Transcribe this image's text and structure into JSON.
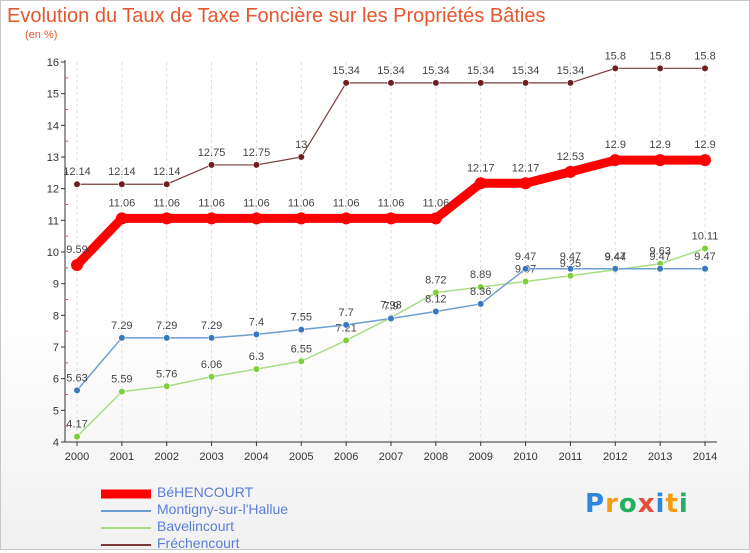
{
  "title": "Evolution du Taux de Taxe Foncière sur les Propriétés Bâties",
  "unit": "(en %)",
  "brand": "Proxiti",
  "colors": {
    "title": "#e4572e",
    "grid": "#dddddd"
  },
  "chart_data": {
    "type": "line",
    "x": [
      2000,
      2001,
      2002,
      2003,
      2004,
      2005,
      2006,
      2007,
      2008,
      2009,
      2010,
      2011,
      2012,
      2013,
      2014
    ],
    "ylim": [
      4,
      16
    ],
    "yticks": [
      4,
      5,
      6,
      7,
      8,
      9,
      10,
      11,
      12,
      13,
      14,
      15,
      16
    ],
    "grid": true,
    "legend_position": "bottom-left",
    "series": [
      {
        "name": "Fréchencourt",
        "color": "#7a3a3a",
        "marker": "#6e2020",
        "width": 1.2,
        "values": [
          12.14,
          12.14,
          12.14,
          12.75,
          12.75,
          13,
          15.34,
          15.34,
          15.34,
          15.34,
          15.34,
          15.34,
          15.8,
          15.8,
          15.8
        ],
        "labels": [
          "12.14",
          "12.14",
          "12.14",
          "12.75",
          "12.75",
          "13",
          "15.34",
          "15.34",
          "15.34",
          "15.34",
          "15.34",
          "15.34",
          "15.8",
          "15.8",
          "15.8"
        ]
      },
      {
        "name": "Bavelincourt",
        "color": "#a8dd86",
        "marker": "#7fcf3a",
        "width": 1.5,
        "values": [
          4.17,
          5.59,
          5.76,
          6.06,
          6.3,
          6.55,
          7.21,
          7.93,
          8.72,
          8.89,
          9.07,
          9.25,
          9.44,
          9.63,
          10.11
        ],
        "labels": [
          "4.17",
          "5.59",
          "5.76",
          "6.06",
          "6.3",
          "6.55",
          "7.21",
          "7.93",
          "8.72",
          "8.89",
          "9.07",
          "9.25",
          "9.44",
          "9.63",
          "10.11"
        ]
      },
      {
        "name": "Montigny-sur-l'Hallue",
        "color": "#6e9fcf",
        "marker": "#3a78bd",
        "width": 1.5,
        "values": [
          5.63,
          7.29,
          7.29,
          7.29,
          7.4,
          7.55,
          7.7,
          7.9,
          8.12,
          8.36,
          9.47,
          9.47,
          9.47,
          9.47,
          9.47
        ],
        "labels": [
          "5.63",
          "7.29",
          "7.29",
          "7.29",
          "7.4",
          "7.55",
          "7.7",
          "7.9",
          "8.12",
          "8.36",
          "9.47",
          "9.47",
          "9.47",
          "9.47",
          "9.47"
        ]
      },
      {
        "name": "BéHENCOURT",
        "color": "#ff0000",
        "marker": "#ff0000",
        "width": 9,
        "values": [
          9.59,
          11.06,
          11.06,
          11.06,
          11.06,
          11.06,
          11.06,
          11.06,
          11.06,
          12.17,
          12.17,
          12.53,
          12.9,
          12.9,
          12.9
        ],
        "labels": [
          "9.59",
          "11.06",
          "11.06",
          "11.06",
          "11.06",
          "11.06",
          "11.06",
          "11.06",
          "11.06",
          "12.17",
          "12.17",
          "12.53",
          "12.9",
          "12.9",
          "12.9"
        ]
      }
    ]
  },
  "legend": [
    {
      "name": "BéHENCOURT",
      "color": "#ff0000",
      "thickness": 9
    },
    {
      "name": "Montigny-sur-l'Hallue",
      "color": "#6e9fcf",
      "thickness": 2
    },
    {
      "name": "Bavelincourt",
      "color": "#a8dd86",
      "thickness": 2
    },
    {
      "name": "Fréchencourt",
      "color": "#7a3a3a",
      "thickness": 2
    }
  ],
  "brand_colors": [
    "#2e86de",
    "#f39c12",
    "#27ae60",
    "#e74c3c",
    "#2e86de",
    "#f39c12",
    "#27ae60"
  ]
}
